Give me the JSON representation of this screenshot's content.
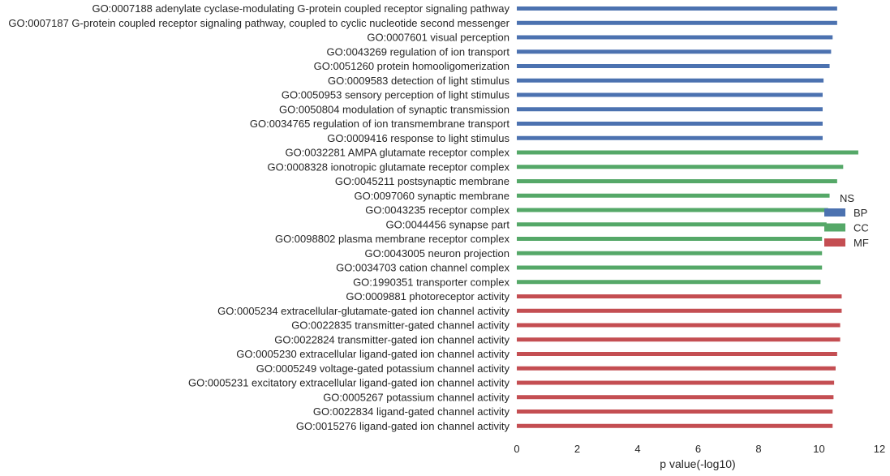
{
  "chart_data": {
    "type": "bar",
    "orientation": "horizontal",
    "xlabel": "p value(-log10)",
    "ylabel": "",
    "title": "",
    "xlim": [
      0,
      12
    ],
    "xticks": [
      0,
      2,
      4,
      6,
      8,
      10,
      12
    ],
    "grid": false,
    "legend": {
      "title": "NS",
      "placement": "right",
      "entries": [
        {
          "name": "BP",
          "color": "#4c72b0"
        },
        {
          "name": "CC",
          "color": "#55a868"
        },
        {
          "name": "MF",
          "color": "#c44e52"
        }
      ]
    },
    "categories": [
      "GO:0007188 adenylate cyclase-modulating G-protein coupled receptor signaling pathway",
      "GO:0007187 G-protein coupled receptor signaling pathway, coupled to cyclic nucleotide second messenger",
      "GO:0007601 visual perception",
      "GO:0043269 regulation of ion transport",
      "GO:0051260 protein homooligomerization",
      "GO:0009583 detection of light stimulus",
      "GO:0050953 sensory perception of light stimulus",
      "GO:0050804 modulation of synaptic transmission",
      "GO:0034765 regulation of ion transmembrane transport",
      "GO:0009416 response to light stimulus",
      "GO:0032281 AMPA glutamate receptor complex",
      "GO:0008328 ionotropic glutamate receptor complex",
      "GO:0045211 postsynaptic membrane",
      "GO:0097060 synaptic membrane",
      "GO:0043235 receptor complex",
      "GO:0044456 synapse part",
      "GO:0098802 plasma membrane receptor complex",
      "GO:0043005 neuron projection",
      "GO:0034703 cation channel complex",
      "GO:1990351 transporter complex",
      "GO:0009881 photoreceptor activity",
      "GO:0005234 extracellular-glutamate-gated ion channel activity",
      "GO:0022835 transmitter-gated channel activity",
      "GO:0022824 transmitter-gated ion channel activity",
      "GO:0005230 extracellular ligand-gated ion channel activity",
      "GO:0005249 voltage-gated potassium channel activity",
      "GO:0005231 excitatory extracellular ligand-gated ion channel activity",
      "GO:0005267 potassium channel activity",
      "GO:0022834 ligand-gated channel activity",
      "GO:0015276 ligand-gated ion channel activity"
    ],
    "groups": [
      "BP",
      "BP",
      "BP",
      "BP",
      "BP",
      "BP",
      "BP",
      "BP",
      "BP",
      "BP",
      "CC",
      "CC",
      "CC",
      "CC",
      "CC",
      "CC",
      "CC",
      "CC",
      "CC",
      "CC",
      "MF",
      "MF",
      "MF",
      "MF",
      "MF",
      "MF",
      "MF",
      "MF",
      "MF",
      "MF"
    ],
    "values": [
      10.6,
      10.6,
      10.45,
      10.4,
      10.35,
      10.15,
      10.12,
      10.12,
      10.12,
      10.12,
      11.3,
      10.8,
      10.6,
      10.35,
      10.3,
      10.25,
      10.1,
      10.1,
      10.1,
      10.05,
      10.75,
      10.75,
      10.7,
      10.7,
      10.6,
      10.55,
      10.5,
      10.48,
      10.45,
      10.45
    ]
  }
}
